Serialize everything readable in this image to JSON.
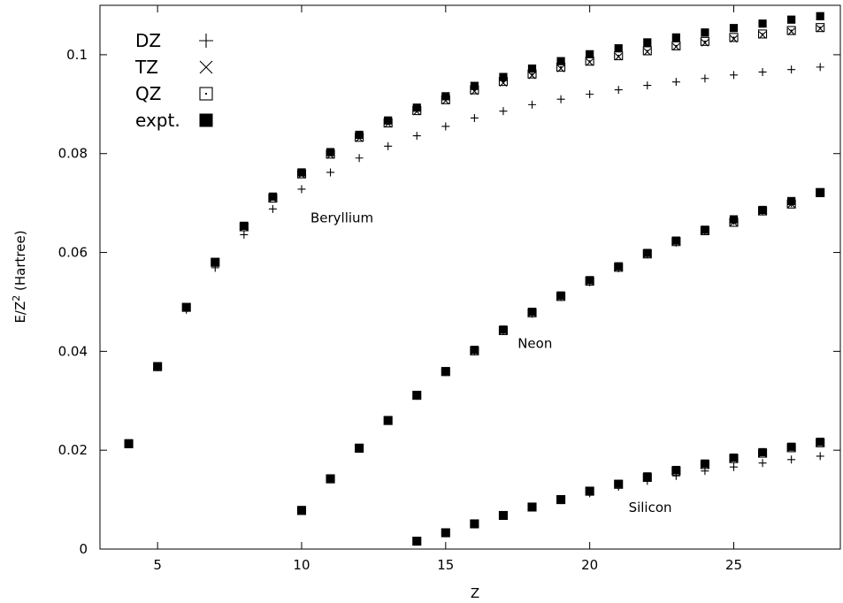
{
  "chart_data": {
    "type": "scatter",
    "xlabel": "Z",
    "ylabel_main": "E/Z",
    "ylabel_sup": "2",
    "ylabel_unit": " (Hartree)",
    "xlim": [
      3,
      28.7
    ],
    "ylim": [
      0,
      0.11
    ],
    "xticks": [
      5,
      10,
      15,
      20,
      25
    ],
    "xtick_labels": [
      "5",
      "10",
      "15",
      "20",
      "25"
    ],
    "yticks": [
      0,
      0.02,
      0.04,
      0.06,
      0.08,
      0.1
    ],
    "ytick_labels": [
      "0",
      "0.02",
      "0.04",
      "0.06",
      "0.08",
      "0.1"
    ],
    "grid": false,
    "legend_position": "top-left",
    "legend": [
      {
        "label": "DZ",
        "marker": "plus"
      },
      {
        "label": "TZ",
        "marker": "cross"
      },
      {
        "label": "QZ",
        "marker": "dotted-square"
      },
      {
        "label": "expt.",
        "marker": "filled-square"
      }
    ],
    "annotations": [
      {
        "text": "Beryllium",
        "x": 11.4,
        "y": 0.067
      },
      {
        "text": "Neon",
        "x": 18.1,
        "y": 0.0416
      },
      {
        "text": "Silicon",
        "x": 22.1,
        "y": 0.0084
      }
    ],
    "families": [
      {
        "name": "Beryllium",
        "x": [
          4,
          5,
          6,
          7,
          8,
          9,
          10,
          11,
          12,
          13,
          14,
          15,
          16,
          17,
          18,
          19,
          20,
          21,
          22,
          23,
          24,
          25,
          26,
          27,
          28
        ],
        "expt": [
          0.0214,
          0.037,
          0.0489,
          0.0581,
          0.0654,
          0.0713,
          0.0762,
          0.0803,
          0.0838,
          0.0867,
          0.0893,
          0.0916,
          0.0937,
          0.0955,
          0.0972,
          0.0987,
          0.1001,
          0.1013,
          0.1025,
          0.1035,
          0.1045,
          0.1054,
          0.1063,
          0.1071,
          0.1078
        ],
        "DZ": [
          0.0212,
          0.0368,
          0.0484,
          0.0569,
          0.0636,
          0.0688,
          0.0728,
          0.0762,
          0.0791,
          0.0815,
          0.0836,
          0.0855,
          0.0872,
          0.0886,
          0.0899,
          0.091,
          0.092,
          0.0929,
          0.0938,
          0.0945,
          0.0952,
          0.0959,
          0.0965,
          0.097,
          0.0975
        ],
        "TZ": [
          0.0213,
          0.0369,
          0.0488,
          0.0579,
          0.0651,
          0.0709,
          0.0757,
          0.0797,
          0.0831,
          0.086,
          0.0885,
          0.0907,
          0.0926,
          0.0943,
          0.0958,
          0.0972,
          0.0985,
          0.0996,
          0.1006,
          0.1016,
          0.1024,
          0.1032,
          0.104,
          0.1047,
          0.1053
        ],
        "QZ": [
          0.0213,
          0.0369,
          0.0489,
          0.058,
          0.0652,
          0.071,
          0.0759,
          0.0799,
          0.0833,
          0.0862,
          0.0887,
          0.0909,
          0.0929,
          0.0946,
          0.0961,
          0.0975,
          0.0987,
          0.0998,
          0.1008,
          0.1018,
          0.1027,
          0.1035,
          0.1042,
          0.1049,
          0.1055
        ]
      },
      {
        "name": "Neon",
        "x": [
          10,
          11,
          12,
          13,
          14,
          15,
          16,
          17,
          18,
          19,
          20,
          21,
          22,
          23,
          24,
          25,
          26,
          27,
          28
        ],
        "expt": [
          0.0079,
          0.0143,
          0.0205,
          0.0261,
          0.0312,
          0.036,
          0.0403,
          0.0444,
          0.048,
          0.0513,
          0.0544,
          0.0572,
          0.0599,
          0.0624,
          0.0646,
          0.0667,
          0.0686,
          0.0704,
          0.0722
        ],
        "DZ": [
          0.0078,
          0.0142,
          0.0204,
          0.026,
          0.031,
          0.0358,
          0.04,
          0.0441,
          0.0476,
          0.051,
          0.054,
          0.0568,
          0.0596,
          0.062,
          0.0643,
          0.0664,
          0.0684,
          0.07,
          0.072
        ],
        "TZ": [
          0.0078,
          0.0142,
          0.0204,
          0.026,
          0.0311,
          0.0359,
          0.0401,
          0.0442,
          0.0478,
          0.0511,
          0.0542,
          0.057,
          0.0597,
          0.0622,
          0.0644,
          0.0661,
          0.0684,
          0.0698,
          0.0721
        ],
        "QZ": [
          0.0078,
          0.0142,
          0.0204,
          0.026,
          0.0311,
          0.0359,
          0.0401,
          0.0442,
          0.0478,
          0.0511,
          0.0542,
          0.057,
          0.0597,
          0.0622,
          0.0644,
          0.0661,
          0.0684,
          0.0698,
          0.0721
        ]
      },
      {
        "name": "Silicon",
        "x": [
          14,
          15,
          16,
          17,
          18,
          19,
          20,
          21,
          22,
          23,
          24,
          25,
          26,
          27,
          28
        ],
        "expt": [
          0.0016,
          0.0033,
          0.0051,
          0.0068,
          0.0085,
          0.0101,
          0.0118,
          0.0132,
          0.0147,
          0.016,
          0.0173,
          0.0185,
          0.0196,
          0.0207,
          0.0217
        ],
        "DZ": [
          0.0015,
          0.0032,
          0.005,
          0.0067,
          0.0084,
          0.0099,
          0.0113,
          0.0126,
          0.0138,
          0.0148,
          0.0158,
          0.0166,
          0.0174,
          0.0181,
          0.0188
        ],
        "TZ": [
          0.0016,
          0.0033,
          0.0051,
          0.0068,
          0.0085,
          0.01,
          0.0117,
          0.0131,
          0.0145,
          0.0158,
          0.0171,
          0.0183,
          0.0194,
          0.0205,
          0.0215
        ],
        "QZ": [
          0.0016,
          0.0033,
          0.0051,
          0.0068,
          0.0085,
          0.01,
          0.0117,
          0.0131,
          0.0145,
          0.0158,
          0.0171,
          0.0183,
          0.0194,
          0.0205,
          0.0215
        ]
      }
    ]
  }
}
